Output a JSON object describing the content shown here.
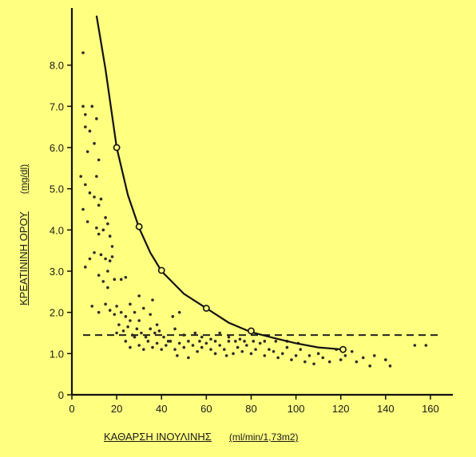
{
  "chart_data": {
    "type": "scatter",
    "xlabel": "ΚΑΘΑΡΣΗ ΙΝΟΥΛΙΝΗΣ",
    "xunit": "(ml/min/1,73m2)",
    "ylabel": "ΚΡΕΑΤΙΝΙΝΗ ΟΡΟΥ",
    "yunit": "(mg/dl)",
    "xlim": [
      0,
      170
    ],
    "ylim": [
      0,
      9
    ],
    "xticks": [
      "0",
      "20",
      "40",
      "60",
      "80",
      "100",
      "120",
      "140",
      "160"
    ],
    "yticks": [
      "0",
      "1.0",
      "2.0",
      "3.0",
      "4.0",
      "5.0",
      "6.0",
      "7.0",
      "8.0"
    ],
    "grid": false,
    "reference_line_y": 1.45,
    "curve": {
      "points": [
        [
          11,
          9.2
        ],
        [
          15,
          7.9
        ],
        [
          20,
          6.0
        ],
        [
          25,
          4.85
        ],
        [
          30,
          4.05
        ],
        [
          35,
          3.45
        ],
        [
          40,
          3.0
        ],
        [
          50,
          2.45
        ],
        [
          60,
          2.1
        ],
        [
          70,
          1.75
        ],
        [
          80,
          1.52
        ],
        [
          90,
          1.38
        ],
        [
          100,
          1.25
        ],
        [
          110,
          1.15
        ],
        [
          121,
          1.1
        ]
      ],
      "markers": [
        [
          20,
          6.0
        ],
        [
          30,
          4.08
        ],
        [
          40,
          3.02
        ],
        [
          60,
          2.1
        ],
        [
          80,
          1.55
        ],
        [
          121,
          1.1
        ]
      ]
    },
    "series": [
      {
        "values": [
          [
            5,
            8.3
          ],
          [
            5,
            7.0
          ],
          [
            6,
            6.8
          ],
          [
            6,
            6.5
          ],
          [
            7,
            5.9
          ],
          [
            8,
            6.4
          ],
          [
            9,
            7.0
          ],
          [
            10,
            6.1
          ],
          [
            11,
            6.7
          ],
          [
            12,
            5.7
          ],
          [
            4,
            5.3
          ],
          [
            6,
            5.1
          ],
          [
            8,
            4.9
          ],
          [
            10,
            4.8
          ],
          [
            11,
            5.3
          ],
          [
            12,
            4.6
          ],
          [
            13,
            4.75
          ],
          [
            15,
            4.3
          ],
          [
            5,
            4.5
          ],
          [
            7,
            4.2
          ],
          [
            11,
            4.05
          ],
          [
            12,
            3.9
          ],
          [
            14,
            4.0
          ],
          [
            16,
            4.15
          ],
          [
            17,
            3.85
          ],
          [
            18,
            3.6
          ],
          [
            8,
            3.3
          ],
          [
            10,
            3.45
          ],
          [
            13,
            3.4
          ],
          [
            15,
            3.3
          ],
          [
            17,
            3.25
          ],
          [
            18,
            3.35
          ],
          [
            6,
            3.1
          ],
          [
            16,
            3.0
          ],
          [
            12,
            2.9
          ],
          [
            14,
            2.75
          ],
          [
            16,
            2.6
          ],
          [
            19,
            2.8
          ],
          [
            22,
            2.8
          ],
          [
            24,
            2.85
          ],
          [
            9,
            2.15
          ],
          [
            12,
            2.0
          ],
          [
            15,
            2.2
          ],
          [
            17,
            2.05
          ],
          [
            19,
            1.95
          ],
          [
            20,
            2.15
          ],
          [
            22,
            2.0
          ],
          [
            24,
            1.9
          ],
          [
            26,
            2.2
          ],
          [
            28,
            2.0
          ],
          [
            30,
            1.8
          ],
          [
            32,
            2.1
          ],
          [
            35,
            1.95
          ],
          [
            21,
            1.7
          ],
          [
            23,
            1.55
          ],
          [
            25,
            1.65
          ],
          [
            27,
            1.45
          ],
          [
            29,
            1.6
          ],
          [
            31,
            1.5
          ],
          [
            33,
            1.4
          ],
          [
            35,
            1.6
          ],
          [
            37,
            1.5
          ],
          [
            39,
            1.55
          ],
          [
            41,
            1.4
          ],
          [
            43,
            1.3
          ],
          [
            24,
            1.3
          ],
          [
            26,
            1.15
          ],
          [
            28,
            1.4
          ],
          [
            30,
            1.2
          ],
          [
            32,
            1.1
          ],
          [
            34,
            1.3
          ],
          [
            36,
            1.15
          ],
          [
            38,
            1.25
          ],
          [
            40,
            1.1
          ],
          [
            42,
            1.2
          ],
          [
            44,
            1.3
          ],
          [
            46,
            1.1
          ],
          [
            48,
            1.25
          ],
          [
            50,
            1.15
          ],
          [
            52,
            1.3
          ],
          [
            54,
            1.2
          ],
          [
            56,
            1.05
          ],
          [
            58,
            1.15
          ],
          [
            60,
            1.25
          ],
          [
            62,
            1.1
          ],
          [
            64,
            1.0
          ],
          [
            66,
            1.2
          ],
          [
            68,
            1.1
          ],
          [
            70,
            1.3
          ],
          [
            72,
            1.0
          ],
          [
            74,
            1.15
          ],
          [
            76,
            1.05
          ],
          [
            78,
            1.2
          ],
          [
            80,
            1.0
          ],
          [
            82,
            1.1
          ],
          [
            84,
            1.25
          ],
          [
            86,
            0.95
          ],
          [
            88,
            1.1
          ],
          [
            90,
            1.05
          ],
          [
            92,
            0.9
          ],
          [
            94,
            1.0
          ],
          [
            96,
            1.15
          ],
          [
            98,
            0.85
          ],
          [
            100,
            0.95
          ],
          [
            102,
            1.1
          ],
          [
            104,
            0.8
          ],
          [
            106,
            0.95
          ],
          [
            108,
            0.75
          ],
          [
            110,
            1.0
          ],
          [
            112,
            0.9
          ],
          [
            115,
            0.8
          ],
          [
            118,
            1.1
          ],
          [
            120,
            0.85
          ],
          [
            122,
            0.95
          ],
          [
            125,
            1.05
          ],
          [
            127,
            0.8
          ],
          [
            130,
            0.9
          ],
          [
            133,
            0.7
          ],
          [
            135,
            0.95
          ],
          [
            140,
            0.85
          ],
          [
            142,
            0.7
          ],
          [
            153,
            1.2
          ],
          [
            158,
            1.2
          ],
          [
            46,
            1.6
          ],
          [
            50,
            1.45
          ],
          [
            55,
            1.5
          ],
          [
            58,
            1.4
          ],
          [
            62,
            1.35
          ],
          [
            66,
            1.5
          ],
          [
            70,
            1.4
          ],
          [
            75,
            1.35
          ],
          [
            45,
            1.9
          ],
          [
            48,
            2.0
          ],
          [
            38,
            1.7
          ],
          [
            36,
            2.3
          ],
          [
            30,
            2.4
          ],
          [
            26,
            1.8
          ],
          [
            20,
            1.5
          ],
          [
            47,
            0.95
          ],
          [
            52,
            0.9
          ],
          [
            57,
            1.3
          ],
          [
            64,
            1.3
          ],
          [
            69,
            0.95
          ],
          [
            73,
            1.3
          ],
          [
            77,
            1.3
          ],
          [
            81,
            1.3
          ],
          [
            86,
            1.3
          ],
          [
            91,
            1.3
          ],
          [
            96,
            1.3
          ],
          [
            101,
            1.25
          ]
        ]
      }
    ]
  }
}
